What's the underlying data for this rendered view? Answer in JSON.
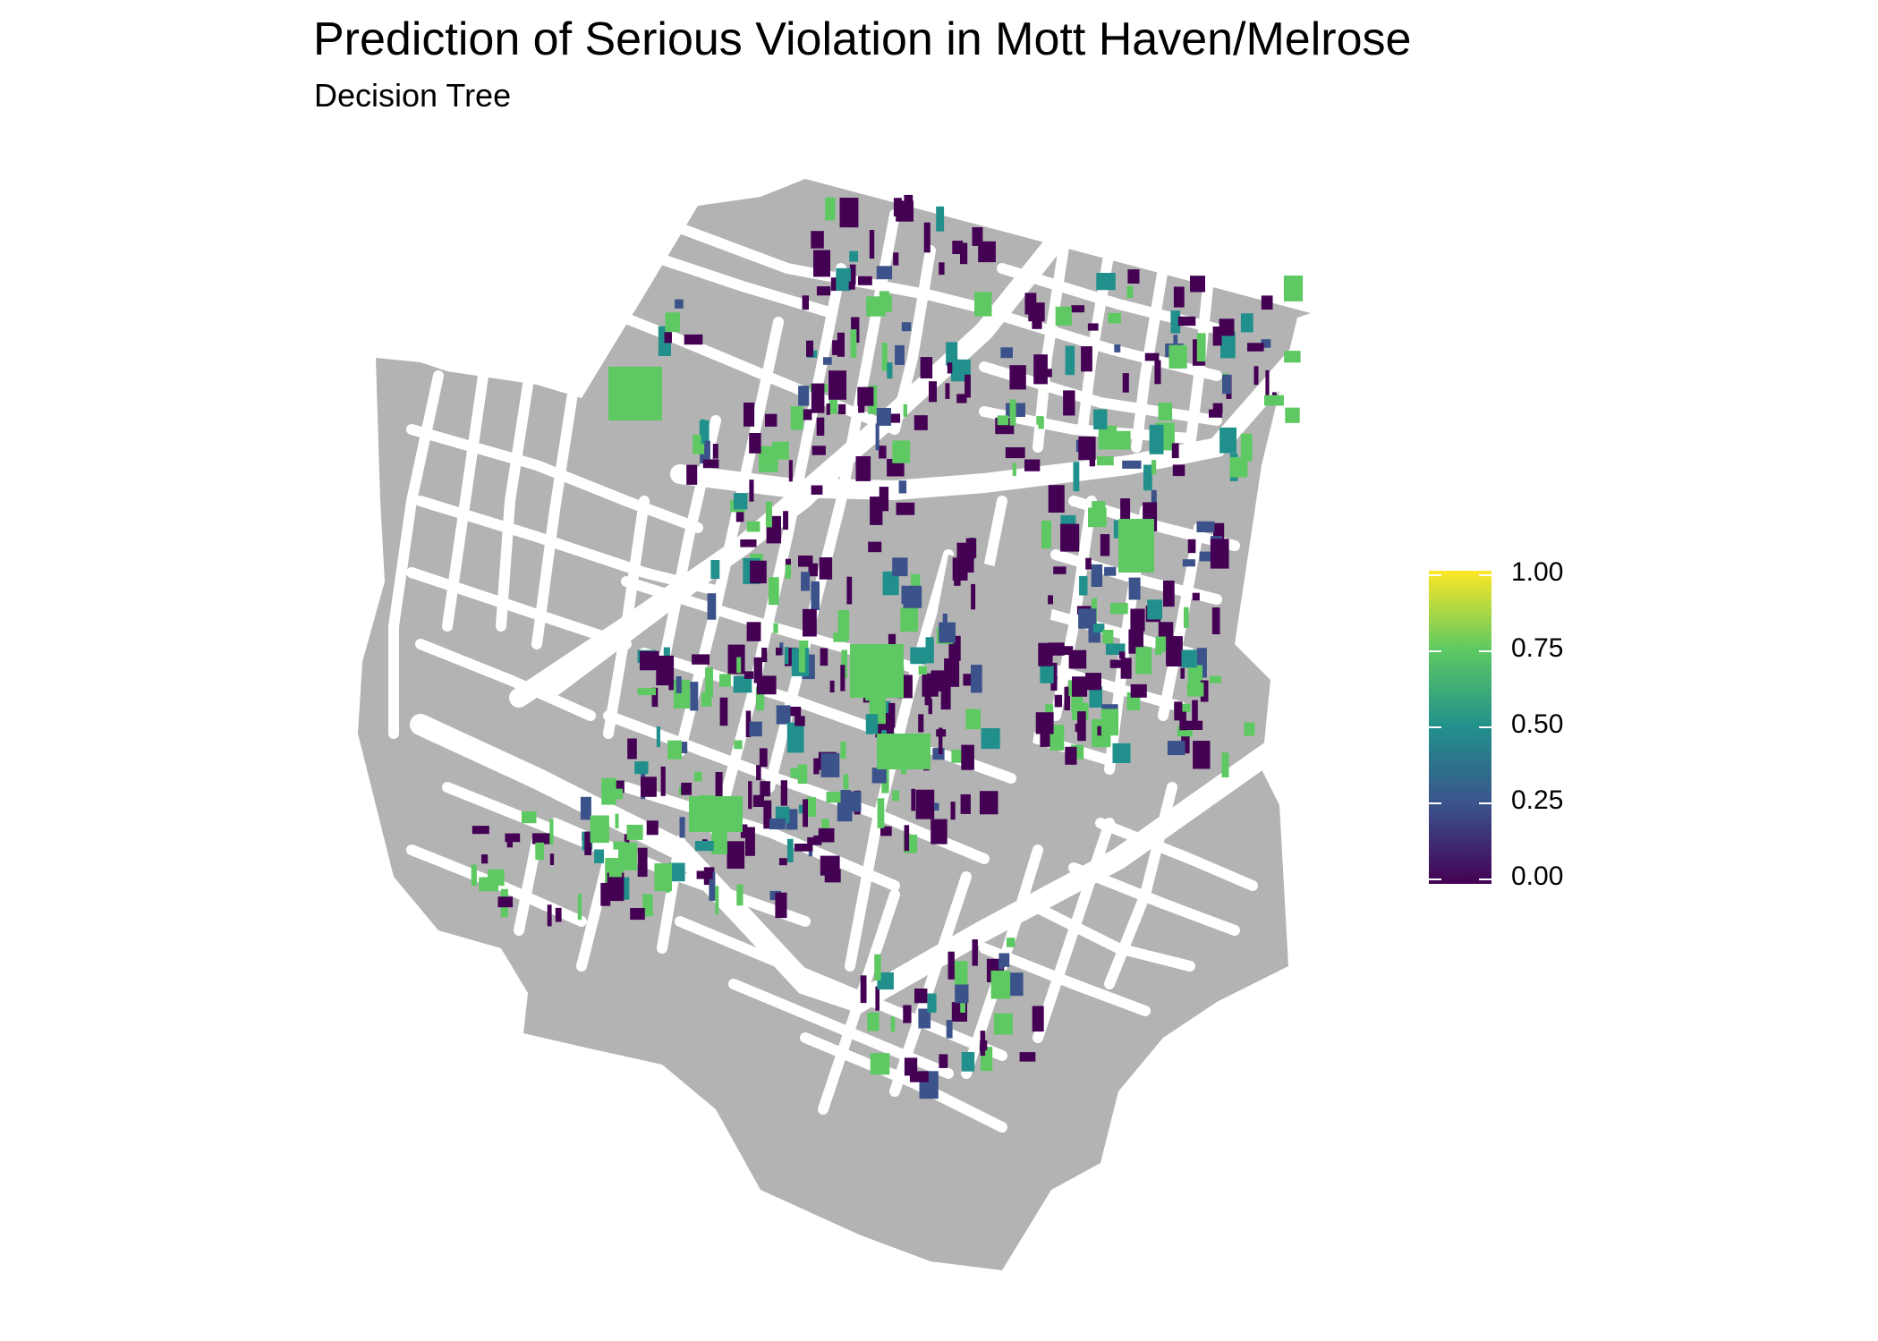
{
  "header": {
    "title": "Prediction of Serious Violation in Mott Haven/Melrose",
    "subtitle": "Decision Tree"
  },
  "legend": {
    "ticks": [
      "0.00",
      "0.25",
      "0.50",
      "0.75",
      "1.00"
    ],
    "tick_values": [
      0,
      0.25,
      0.5,
      0.75,
      1.0
    ],
    "colormap": "viridis",
    "colors": {
      "low": "#440154",
      "mid_low": "#3b528b",
      "mid": "#21908c",
      "mid_high": "#5ec962",
      "high": "#fde725"
    }
  },
  "map": {
    "base_color": "#b3b3b3",
    "street_color": "#ffffff",
    "background": "#ffffff"
  }
}
